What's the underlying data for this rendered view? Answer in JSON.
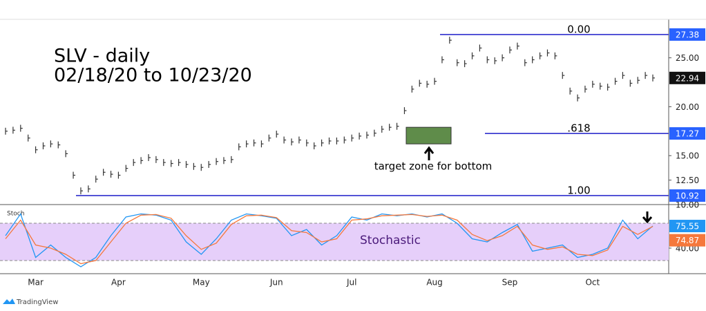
{
  "chart_data": [
    {
      "type": "ohlc",
      "title": "SLV - daily",
      "subtitle": "02/18/20 to 10/23/20",
      "color": "#333333",
      "categories": [
        null,
        null,
        null,
        null,
        "Mar",
        null,
        null,
        null,
        null,
        null,
        null,
        null,
        null,
        null,
        null,
        "Apr",
        null,
        null,
        null,
        null,
        null,
        null,
        null,
        null,
        null,
        null,
        "May",
        null,
        null,
        null,
        null,
        null,
        null,
        null,
        null,
        null,
        "Jun",
        null,
        null,
        null,
        null,
        null,
        null,
        null,
        null,
        null,
        "Jul",
        null,
        null,
        null,
        null,
        null,
        null,
        null,
        null,
        null,
        null,
        "Aug",
        null,
        null,
        null,
        null,
        null,
        null,
        null,
        null,
        null,
        "Sep",
        null,
        null,
        null,
        null,
        null,
        null,
        null,
        null,
        null,
        null,
        "Oct",
        null,
        null,
        null,
        null,
        null,
        null,
        null,
        null
      ],
      "values": [
        17.5,
        17.6,
        17.8,
        16.8,
        15.6,
        16.0,
        16.2,
        16.1,
        15.2,
        13.0,
        11.4,
        11.6,
        12.6,
        13.3,
        13.1,
        13.0,
        13.7,
        14.3,
        14.5,
        14.8,
        14.6,
        14.3,
        14.2,
        14.3,
        14.1,
        13.9,
        13.8,
        14.1,
        14.4,
        14.5,
        14.6,
        15.9,
        16.2,
        16.3,
        16.2,
        16.8,
        17.2,
        16.6,
        16.4,
        16.6,
        16.3,
        16.0,
        16.3,
        16.5,
        16.5,
        16.6,
        16.8,
        17.0,
        17.1,
        17.3,
        17.7,
        17.9,
        18.0,
        19.6,
        21.8,
        22.4,
        22.3,
        22.6,
        24.8,
        26.8,
        24.5,
        24.4,
        25.2,
        26.0,
        24.8,
        24.7,
        25.0,
        25.8,
        26.2,
        24.5,
        24.8,
        25.2,
        25.5,
        25.2,
        23.2,
        21.6,
        20.9,
        21.8,
        22.3,
        22.1,
        22.0,
        22.6,
        23.2,
        22.4,
        22.7,
        23.2,
        22.94
      ],
      "ylim": [
        10.07,
        28.79
      ],
      "yticks": [
        {
          "value": 10,
          "label": "10.00"
        },
        {
          "value": 12.5,
          "label": "12.50"
        },
        {
          "value": 15,
          "label": "15.00"
        },
        {
          "value": 20,
          "label": "20.00"
        },
        {
          "value": 25,
          "label": "25.00"
        }
      ],
      "levels": [
        {
          "label": "0.00",
          "value": 27.38
        },
        {
          "label": ".618",
          "value": 17.27
        },
        {
          "label": "1.00",
          "value": 10.92
        }
      ],
      "level_color": "#1c1cc8",
      "badge_color": "#2962ff",
      "target_zone": {
        "range": [
          16.2,
          17.9
        ],
        "label": "target zone for bottom",
        "color": "#5f8c4a"
      },
      "source": "TradingView"
    },
    {
      "type": "line",
      "title": "Stoch",
      "annotation": "Stochastic",
      "series": [
        {
          "color": "#2196f3",
          "values": [
            60,
            95,
            25,
            45,
            25,
            10,
            25,
            60,
            90,
            95,
            93,
            85,
            50,
            30,
            55,
            85,
            95,
            92,
            88,
            60,
            70,
            45,
            60,
            90,
            85,
            95,
            92,
            95,
            90,
            95,
            80,
            55,
            50,
            65,
            78,
            35,
            40,
            45,
            25,
            30,
            40,
            85,
            55,
            75.55
          ]
        },
        {
          "color": "#f5783c",
          "values": [
            55,
            85,
            45,
            40,
            30,
            15,
            20,
            50,
            80,
            93,
            94,
            88,
            60,
            38,
            48,
            78,
            92,
            93,
            89,
            68,
            65,
            50,
            55,
            85,
            87,
            92,
            93,
            94,
            91,
            93,
            85,
            62,
            52,
            60,
            75,
            45,
            38,
            42,
            30,
            28,
            37,
            75,
            62,
            74.87
          ]
        }
      ],
      "ylim": [
        0,
        105.6
      ],
      "yticks": [
        {
          "value": 40,
          "label": "40.00"
        }
      ],
      "bands": [
        20,
        80
      ],
      "band_fill": "#e6cffa"
    }
  ]
}
